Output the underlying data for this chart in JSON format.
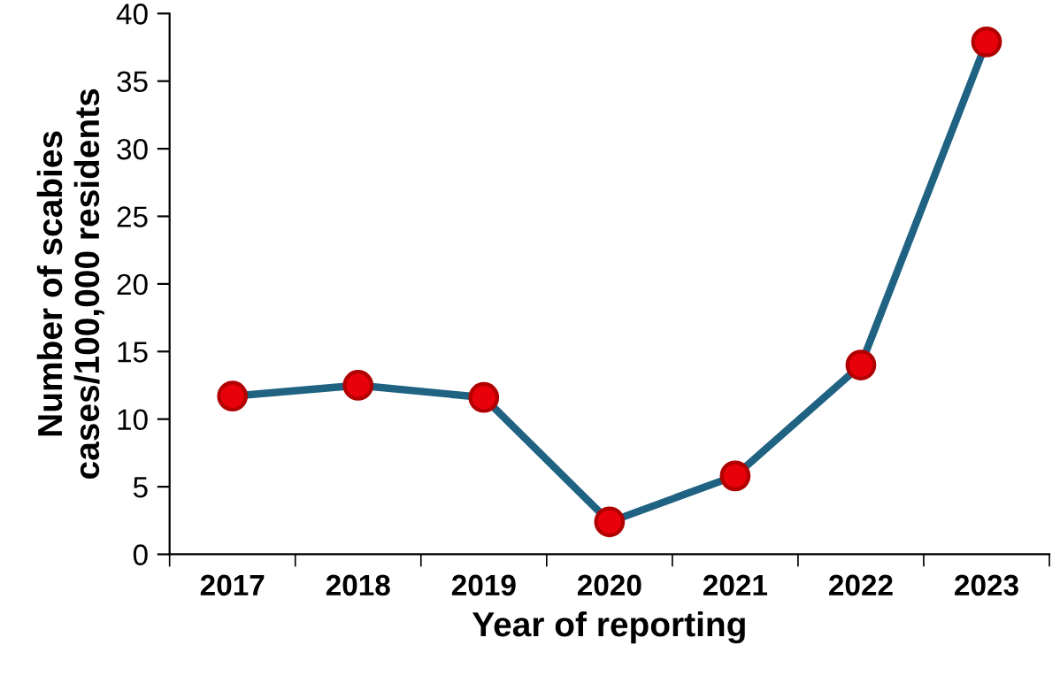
{
  "chart_data": {
    "type": "line",
    "xlabel": "Year of reporting",
    "ylabel": "Number of scabies\ncases/100,000 residents",
    "categories": [
      "2017",
      "2018",
      "2019",
      "2020",
      "2021",
      "2022",
      "2023"
    ],
    "series": [
      {
        "color": "#1f6282",
        "values": [
          11.7,
          12.5,
          11.6,
          2.4,
          5.8,
          14.0,
          37.9
        ]
      }
    ],
    "marker": "circle",
    "line_style": "solid",
    "ylim": [
      0,
      40
    ],
    "yticks": [
      0,
      5,
      10,
      15,
      20,
      25,
      30,
      35,
      40
    ],
    "grid": false,
    "legend": false
  }
}
